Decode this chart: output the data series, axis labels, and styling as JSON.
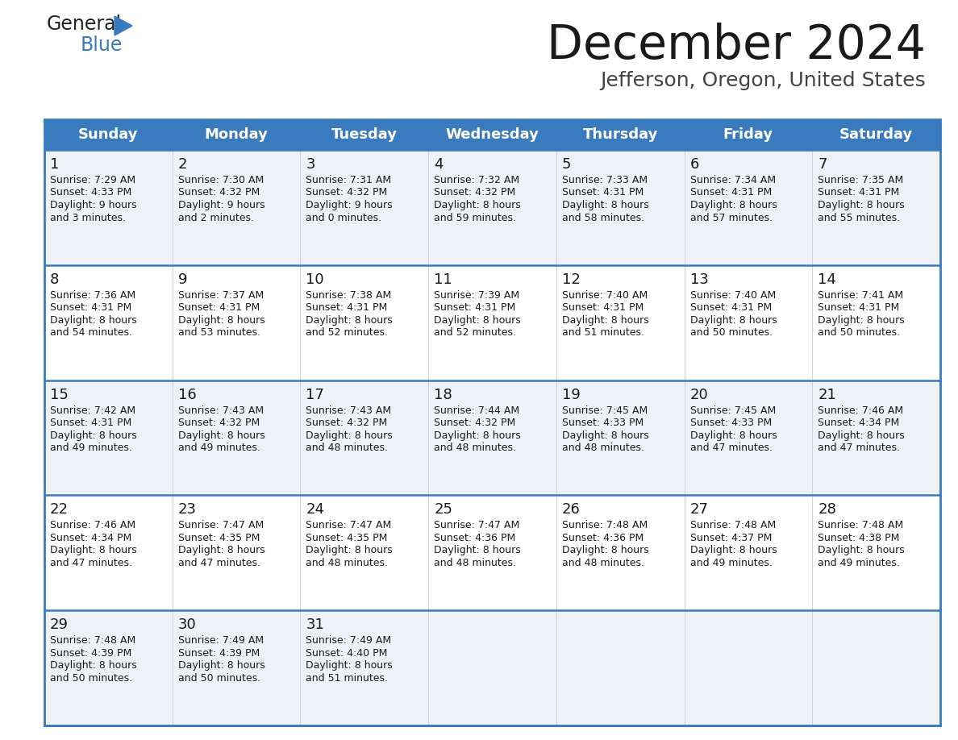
{
  "title": "December 2024",
  "subtitle": "Jefferson, Oregon, United States",
  "header_bg_color": "#3a7bbf",
  "header_text_color": "#ffffff",
  "row0_bg": "#eef2f7",
  "row1_bg": "#ffffff",
  "border_color": "#3a7bbf",
  "sep_color": "#c8d4e0",
  "day_names": [
    "Sunday",
    "Monday",
    "Tuesday",
    "Wednesday",
    "Thursday",
    "Friday",
    "Saturday"
  ],
  "days": [
    {
      "day": 1,
      "col": 0,
      "row": 0,
      "sunrise": "7:29 AM",
      "sunset": "4:33 PM",
      "daylight": "9 hours",
      "daylight2": "and 3 minutes."
    },
    {
      "day": 2,
      "col": 1,
      "row": 0,
      "sunrise": "7:30 AM",
      "sunset": "4:32 PM",
      "daylight": "9 hours",
      "daylight2": "and 2 minutes."
    },
    {
      "day": 3,
      "col": 2,
      "row": 0,
      "sunrise": "7:31 AM",
      "sunset": "4:32 PM",
      "daylight": "9 hours",
      "daylight2": "and 0 minutes."
    },
    {
      "day": 4,
      "col": 3,
      "row": 0,
      "sunrise": "7:32 AM",
      "sunset": "4:32 PM",
      "daylight": "8 hours",
      "daylight2": "and 59 minutes."
    },
    {
      "day": 5,
      "col": 4,
      "row": 0,
      "sunrise": "7:33 AM",
      "sunset": "4:31 PM",
      "daylight": "8 hours",
      "daylight2": "and 58 minutes."
    },
    {
      "day": 6,
      "col": 5,
      "row": 0,
      "sunrise": "7:34 AM",
      "sunset": "4:31 PM",
      "daylight": "8 hours",
      "daylight2": "and 57 minutes."
    },
    {
      "day": 7,
      "col": 6,
      "row": 0,
      "sunrise": "7:35 AM",
      "sunset": "4:31 PM",
      "daylight": "8 hours",
      "daylight2": "and 55 minutes."
    },
    {
      "day": 8,
      "col": 0,
      "row": 1,
      "sunrise": "7:36 AM",
      "sunset": "4:31 PM",
      "daylight": "8 hours",
      "daylight2": "and 54 minutes."
    },
    {
      "day": 9,
      "col": 1,
      "row": 1,
      "sunrise": "7:37 AM",
      "sunset": "4:31 PM",
      "daylight": "8 hours",
      "daylight2": "and 53 minutes."
    },
    {
      "day": 10,
      "col": 2,
      "row": 1,
      "sunrise": "7:38 AM",
      "sunset": "4:31 PM",
      "daylight": "8 hours",
      "daylight2": "and 52 minutes."
    },
    {
      "day": 11,
      "col": 3,
      "row": 1,
      "sunrise": "7:39 AM",
      "sunset": "4:31 PM",
      "daylight": "8 hours",
      "daylight2": "and 52 minutes."
    },
    {
      "day": 12,
      "col": 4,
      "row": 1,
      "sunrise": "7:40 AM",
      "sunset": "4:31 PM",
      "daylight": "8 hours",
      "daylight2": "and 51 minutes."
    },
    {
      "day": 13,
      "col": 5,
      "row": 1,
      "sunrise": "7:40 AM",
      "sunset": "4:31 PM",
      "daylight": "8 hours",
      "daylight2": "and 50 minutes."
    },
    {
      "day": 14,
      "col": 6,
      "row": 1,
      "sunrise": "7:41 AM",
      "sunset": "4:31 PM",
      "daylight": "8 hours",
      "daylight2": "and 50 minutes."
    },
    {
      "day": 15,
      "col": 0,
      "row": 2,
      "sunrise": "7:42 AM",
      "sunset": "4:31 PM",
      "daylight": "8 hours",
      "daylight2": "and 49 minutes."
    },
    {
      "day": 16,
      "col": 1,
      "row": 2,
      "sunrise": "7:43 AM",
      "sunset": "4:32 PM",
      "daylight": "8 hours",
      "daylight2": "and 49 minutes."
    },
    {
      "day": 17,
      "col": 2,
      "row": 2,
      "sunrise": "7:43 AM",
      "sunset": "4:32 PM",
      "daylight": "8 hours",
      "daylight2": "and 48 minutes."
    },
    {
      "day": 18,
      "col": 3,
      "row": 2,
      "sunrise": "7:44 AM",
      "sunset": "4:32 PM",
      "daylight": "8 hours",
      "daylight2": "and 48 minutes."
    },
    {
      "day": 19,
      "col": 4,
      "row": 2,
      "sunrise": "7:45 AM",
      "sunset": "4:33 PM",
      "daylight": "8 hours",
      "daylight2": "and 48 minutes."
    },
    {
      "day": 20,
      "col": 5,
      "row": 2,
      "sunrise": "7:45 AM",
      "sunset": "4:33 PM",
      "daylight": "8 hours",
      "daylight2": "and 47 minutes."
    },
    {
      "day": 21,
      "col": 6,
      "row": 2,
      "sunrise": "7:46 AM",
      "sunset": "4:34 PM",
      "daylight": "8 hours",
      "daylight2": "and 47 minutes."
    },
    {
      "day": 22,
      "col": 0,
      "row": 3,
      "sunrise": "7:46 AM",
      "sunset": "4:34 PM",
      "daylight": "8 hours",
      "daylight2": "and 47 minutes."
    },
    {
      "day": 23,
      "col": 1,
      "row": 3,
      "sunrise": "7:47 AM",
      "sunset": "4:35 PM",
      "daylight": "8 hours",
      "daylight2": "and 47 minutes."
    },
    {
      "day": 24,
      "col": 2,
      "row": 3,
      "sunrise": "7:47 AM",
      "sunset": "4:35 PM",
      "daylight": "8 hours",
      "daylight2": "and 48 minutes."
    },
    {
      "day": 25,
      "col": 3,
      "row": 3,
      "sunrise": "7:47 AM",
      "sunset": "4:36 PM",
      "daylight": "8 hours",
      "daylight2": "and 48 minutes."
    },
    {
      "day": 26,
      "col": 4,
      "row": 3,
      "sunrise": "7:48 AM",
      "sunset": "4:36 PM",
      "daylight": "8 hours",
      "daylight2": "and 48 minutes."
    },
    {
      "day": 27,
      "col": 5,
      "row": 3,
      "sunrise": "7:48 AM",
      "sunset": "4:37 PM",
      "daylight": "8 hours",
      "daylight2": "and 49 minutes."
    },
    {
      "day": 28,
      "col": 6,
      "row": 3,
      "sunrise": "7:48 AM",
      "sunset": "4:38 PM",
      "daylight": "8 hours",
      "daylight2": "and 49 minutes."
    },
    {
      "day": 29,
      "col": 0,
      "row": 4,
      "sunrise": "7:48 AM",
      "sunset": "4:39 PM",
      "daylight": "8 hours",
      "daylight2": "and 50 minutes."
    },
    {
      "day": 30,
      "col": 1,
      "row": 4,
      "sunrise": "7:49 AM",
      "sunset": "4:39 PM",
      "daylight": "8 hours",
      "daylight2": "and 50 minutes."
    },
    {
      "day": 31,
      "col": 2,
      "row": 4,
      "sunrise": "7:49 AM",
      "sunset": "4:40 PM",
      "daylight": "8 hours",
      "daylight2": "and 51 minutes."
    }
  ],
  "n_rows": 5,
  "n_cols": 7
}
